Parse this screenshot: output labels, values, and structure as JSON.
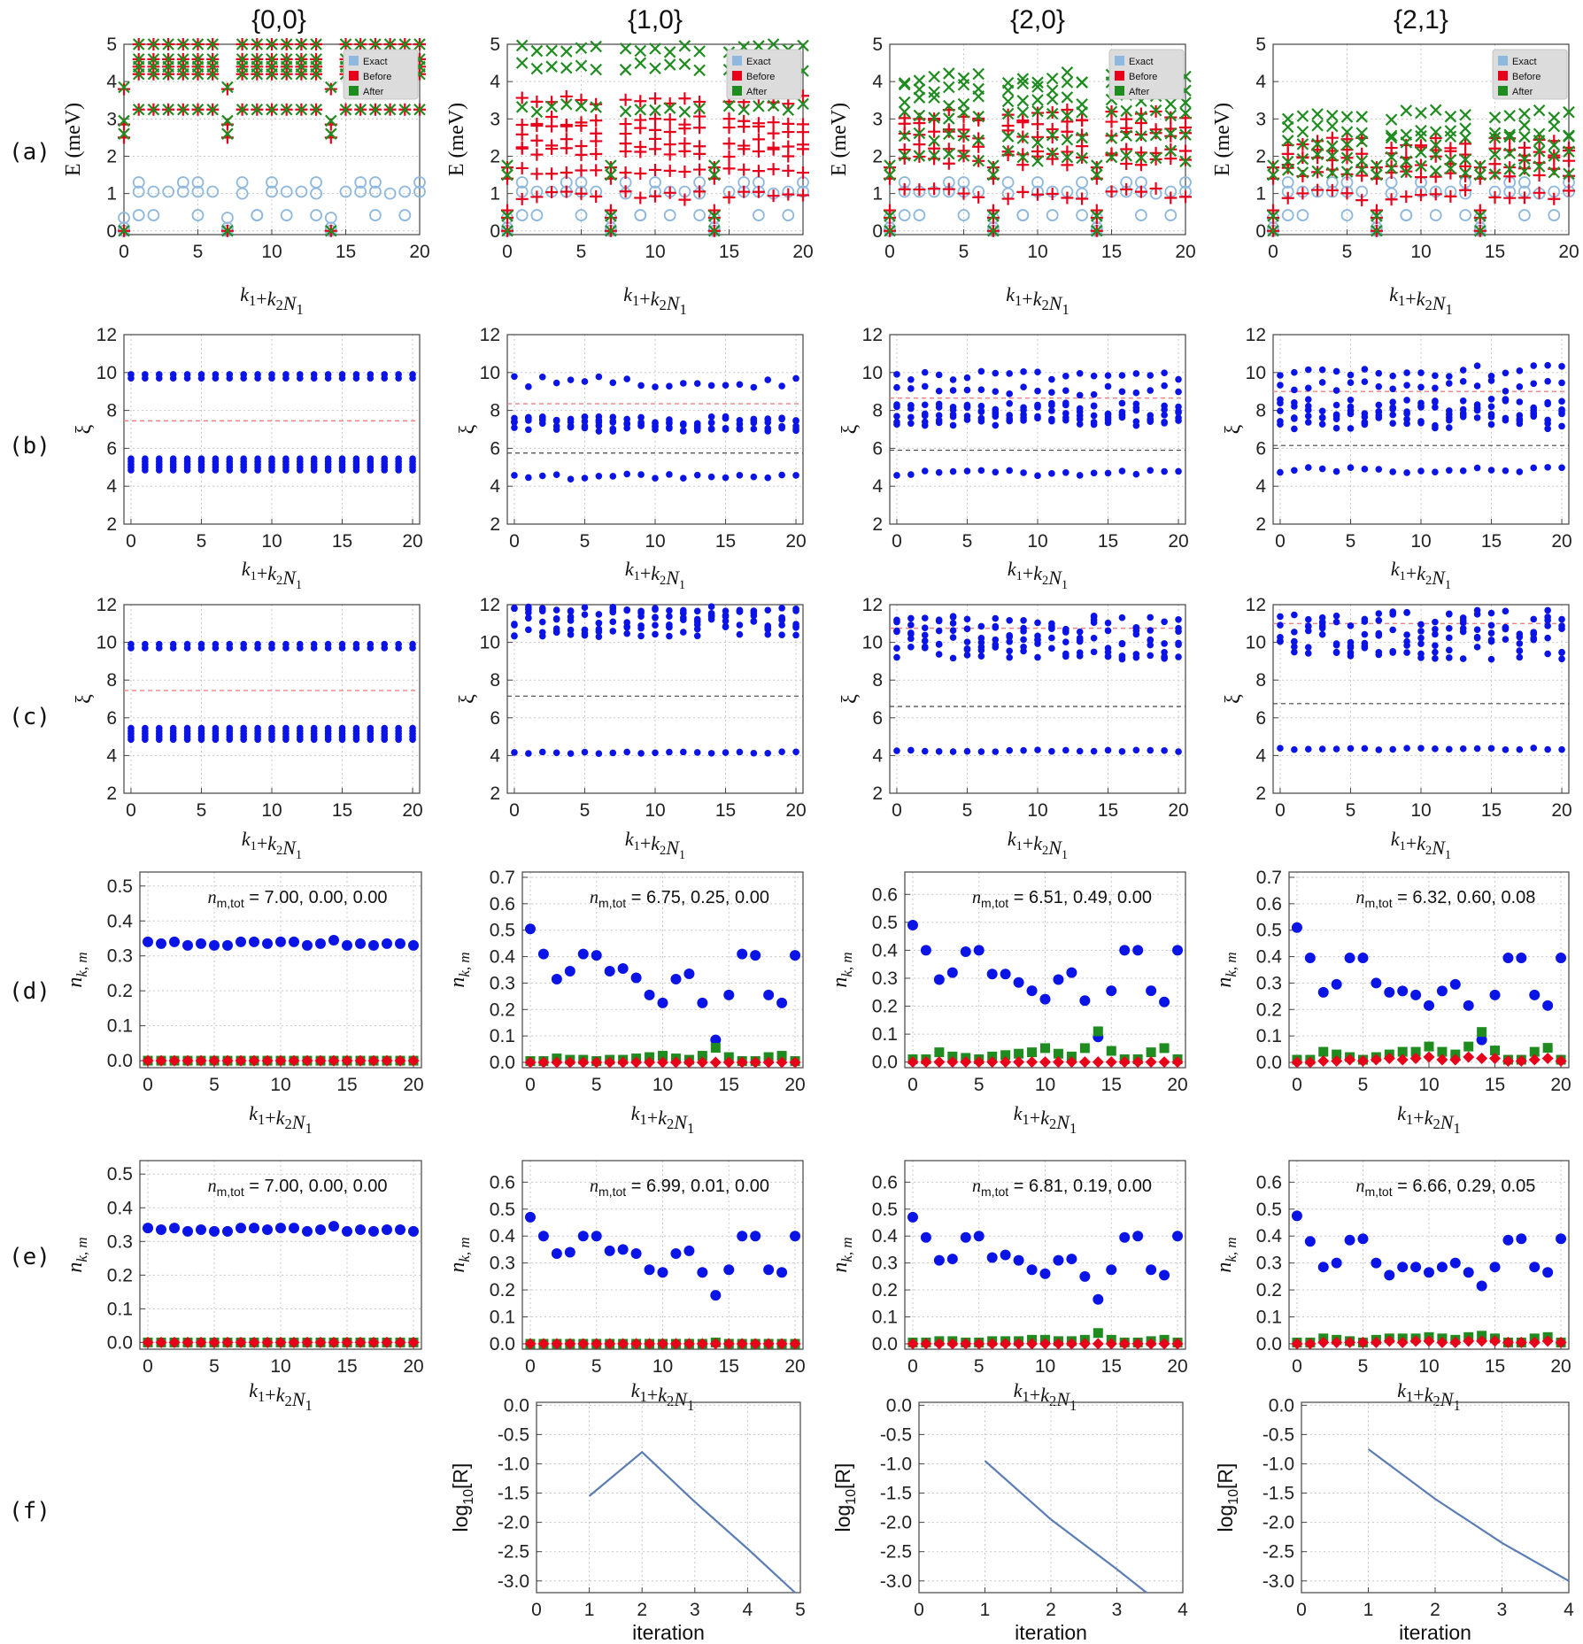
{
  "column_titles": [
    "{0,0}",
    "{1,0}",
    "{2,0}",
    "{2,1}"
  ],
  "row_labels": [
    "(a)",
    "(b)",
    "(c)",
    "(d)",
    "(e)",
    "(f)"
  ],
  "colors": {
    "exact": "#8fb8de",
    "before": "#e8001a",
    "after": "#1e8c1e",
    "xi": "#0a14e6",
    "nk_1": "#0a14e6",
    "nk_2": "#1e8c1e",
    "nk_3": "#e8001a",
    "line": "#5b7db5",
    "thr_red": "#f08080",
    "thr_gray": "#444444"
  },
  "chart_data": [
    {
      "type": "scatter",
      "row": "a",
      "title": "{0,0}",
      "xlabel": "k1+k2N1",
      "ylabel": "E (meV)",
      "xlim": [
        0,
        20
      ],
      "ylim": [
        0,
        5
      ],
      "xticks": [
        "0",
        "5",
        "10",
        "15",
        "20"
      ],
      "yticks": [
        "0",
        "1",
        "2",
        "3",
        "4",
        "5"
      ],
      "legend": [
        "Exact",
        "Before",
        "After"
      ],
      "legend_position": "top-right",
      "exact": [
        [
          0,
          0,
          0.35,
          0.35,
          0.35,
          0
        ],
        [
          1.05,
          1.3,
          0.42,
          1.05,
          1.3,
          1.05
        ],
        [
          1.05,
          0.42,
          1.05,
          1.3,
          0.42,
          1.05
        ]
      ],
      "before": [
        [
          0,
          2.5,
          2.9,
          3.25,
          3.8
        ],
        [
          3.25,
          4.3,
          4.5,
          4.6,
          5.0
        ],
        [
          4.0,
          3.25,
          2.6,
          2.8,
          4.0
        ]
      ],
      "after": [
        [
          0,
          2.6,
          3.0,
          3.25,
          3.85
        ],
        [
          3.25,
          4.3,
          4.5,
          4.6,
          5.0
        ],
        [
          4.0,
          3.25,
          2.5,
          2.8,
          4.0
        ]
      ]
    },
    {
      "type": "scatter",
      "row": "a",
      "title": "{1,0}",
      "xlabel": "k1+k2N1",
      "ylabel": "E (meV)",
      "xlim": [
        0,
        20
      ],
      "ylim": [
        0,
        5
      ],
      "xticks": [
        "0",
        "5",
        "10",
        "15",
        "20"
      ],
      "yticks": [
        "0",
        "1",
        "2",
        "3",
        "4",
        "5"
      ],
      "legend": [
        "Exact",
        "Before",
        "After"
      ],
      "legend_position": "top-right"
    },
    {
      "type": "scatter",
      "row": "a",
      "title": "{2,0}",
      "xlabel": "k1+k2N1",
      "ylabel": "E (meV)",
      "xlim": [
        0,
        20
      ],
      "ylim": [
        0,
        5
      ],
      "xticks": [
        "0",
        "5",
        "10",
        "15",
        "20"
      ],
      "yticks": [
        "0",
        "1",
        "2",
        "3",
        "4",
        "5"
      ],
      "legend": [
        "Exact",
        "Before",
        "After"
      ],
      "legend_position": "top-right"
    },
    {
      "type": "scatter",
      "row": "a",
      "title": "{2,1}",
      "xlabel": "k1+k2N1",
      "ylabel": "E (meV)",
      "xlim": [
        0,
        20
      ],
      "ylim": [
        0,
        5
      ],
      "xticks": [
        "0",
        "5",
        "10",
        "15",
        "20"
      ],
      "yticks": [
        "0",
        "1",
        "2",
        "3",
        "4",
        "5"
      ],
      "legend": [
        "Exact",
        "Before",
        "After"
      ],
      "legend_position": "top-right"
    },
    {
      "type": "scatter",
      "row": "b",
      "xlabel": "k1+k2N1",
      "ylabel": "ξ",
      "xlim": [
        0,
        20
      ],
      "ylim": [
        2,
        12
      ],
      "thresholds": {
        "red": 7.45
      }
    },
    {
      "type": "scatter",
      "row": "b",
      "xlabel": "k1+k2N1",
      "ylabel": "ξ",
      "xlim": [
        0,
        20
      ],
      "ylim": [
        2,
        12
      ],
      "thresholds": {
        "red": 8.35,
        "gray": 5.75
      }
    },
    {
      "type": "scatter",
      "row": "b",
      "xlabel": "k1+k2N1",
      "ylabel": "ξ",
      "xlim": [
        0,
        20
      ],
      "ylim": [
        2,
        12
      ],
      "thresholds": {
        "red": 8.65,
        "gray": 5.9
      }
    },
    {
      "type": "scatter",
      "row": "b",
      "xlabel": "k1+k2N1",
      "ylabel": "ξ",
      "xlim": [
        0,
        20
      ],
      "ylim": [
        2,
        12
      ],
      "thresholds": {
        "red": 9.0,
        "gray": 6.15
      }
    },
    {
      "type": "scatter",
      "row": "c",
      "xlabel": "k1+k2N1",
      "ylabel": "ξ",
      "xlim": [
        0,
        20
      ],
      "ylim": [
        2,
        12
      ],
      "thresholds": {
        "red": 7.45
      }
    },
    {
      "type": "scatter",
      "row": "c",
      "xlabel": "k1+k2N1",
      "ylabel": "ξ",
      "xlim": [
        0,
        20
      ],
      "ylim": [
        2,
        12
      ],
      "thresholds": {
        "gray": 7.15
      }
    },
    {
      "type": "scatter",
      "row": "c",
      "xlabel": "k1+k2N1",
      "ylabel": "ξ",
      "xlim": [
        0,
        20
      ],
      "ylim": [
        2,
        12
      ],
      "thresholds": {
        "red": 10.75,
        "gray": 6.6
      }
    },
    {
      "type": "scatter",
      "row": "c",
      "xlabel": "k1+k2N1",
      "ylabel": "ξ",
      "xlim": [
        0,
        20
      ],
      "ylim": [
        2,
        12
      ],
      "thresholds": {
        "red": 11.0,
        "gray": 6.75
      }
    },
    {
      "type": "scatter",
      "row": "d",
      "xlabel": "k1+k2N1",
      "ylabel": "nk,m",
      "xlim": [
        0,
        20
      ],
      "ylim": [
        0,
        0.5
      ],
      "annotation": "nm,tot = 7.00, 0.00,  0.00",
      "m1": [
        0.34,
        0.335,
        0.34,
        0.33,
        0.335,
        0.33,
        0.33,
        0.34,
        0.34,
        0.335,
        0.34,
        0.34,
        0.33,
        0.335,
        0.345,
        0.33,
        0.335,
        0.33,
        0.335,
        0.335,
        0.33
      ],
      "m2": [
        0,
        0,
        0,
        0,
        0,
        0,
        0,
        0,
        0,
        0,
        0,
        0,
        0,
        0,
        0,
        0,
        0,
        0,
        0,
        0,
        0
      ],
      "m3": [
        0,
        0,
        0,
        0,
        0,
        0,
        0,
        0,
        0,
        0,
        0,
        0,
        0,
        0,
        0,
        0,
        0,
        0,
        0,
        0,
        0
      ]
    },
    {
      "type": "scatter",
      "row": "d",
      "xlabel": "k1+k2N1",
      "ylabel": "nk,m",
      "xlim": [
        0,
        20
      ],
      "ylim": [
        0,
        0.7
      ],
      "annotation": "nm,tot = 6.75, 0.25,  0.00",
      "m1": [
        0.505,
        0.41,
        0.315,
        0.345,
        0.41,
        0.405,
        0.345,
        0.355,
        0.32,
        0.255,
        0.225,
        0.315,
        0.335,
        0.225,
        0.085,
        0.255,
        0.41,
        0.405,
        0.255,
        0.225,
        0.405
      ],
      "m2": [
        0.005,
        0.005,
        0.015,
        0.01,
        0.01,
        0.005,
        0.01,
        0.01,
        0.015,
        0.02,
        0.025,
        0.015,
        0.01,
        0.025,
        0.055,
        0.02,
        0.005,
        0.005,
        0.02,
        0.025,
        0.005
      ],
      "m3": [
        0,
        0,
        0,
        0,
        0,
        0,
        0,
        0,
        0,
        0,
        0,
        0,
        0,
        0,
        0,
        0,
        0,
        0,
        0,
        0,
        0
      ]
    },
    {
      "type": "scatter",
      "row": "d",
      "xlabel": "k1+k2N1",
      "ylabel": "nk,m",
      "xlim": [
        0,
        20
      ],
      "ylim": [
        0,
        0.65
      ],
      "annotation": "nm,tot = 6.51, 0.49,  0.00",
      "m1": [
        0.49,
        0.4,
        0.295,
        0.32,
        0.395,
        0.4,
        0.315,
        0.315,
        0.285,
        0.255,
        0.225,
        0.295,
        0.32,
        0.22,
        0.09,
        0.255,
        0.4,
        0.4,
        0.255,
        0.215,
        0.4
      ],
      "m2": [
        0.01,
        0.01,
        0.035,
        0.02,
        0.015,
        0.01,
        0.02,
        0.025,
        0.03,
        0.035,
        0.05,
        0.03,
        0.02,
        0.05,
        0.11,
        0.04,
        0.01,
        0.01,
        0.035,
        0.05,
        0.01
      ],
      "m3": [
        0,
        0,
        0,
        0,
        0,
        0,
        0,
        0,
        0,
        0,
        0,
        0,
        0,
        0,
        0,
        0,
        0,
        0,
        0,
        0,
        0
      ]
    },
    {
      "type": "scatter",
      "row": "d",
      "xlabel": "k1+k2N1",
      "ylabel": "nk,m",
      "xlim": [
        0,
        20
      ],
      "ylim": [
        0,
        0.7
      ],
      "annotation": "nm,tot = 6.32, 0.60,  0.08",
      "m1": [
        0.51,
        0.395,
        0.265,
        0.295,
        0.395,
        0.395,
        0.3,
        0.265,
        0.27,
        0.255,
        0.215,
        0.27,
        0.295,
        0.215,
        0.085,
        0.255,
        0.395,
        0.395,
        0.255,
        0.215,
        0.395
      ],
      "m2": [
        0.01,
        0.01,
        0.04,
        0.03,
        0.02,
        0.01,
        0.02,
        0.03,
        0.04,
        0.04,
        0.06,
        0.04,
        0.03,
        0.06,
        0.115,
        0.045,
        0.01,
        0.01,
        0.04,
        0.055,
        0.01
      ],
      "m3": [
        0,
        0,
        0.005,
        0.005,
        0.01,
        0.005,
        0.01,
        0.015,
        0.01,
        0.015,
        0.02,
        0.01,
        0.01,
        0.02,
        0.015,
        0.015,
        0.005,
        0.005,
        0.01,
        0.015,
        0.005
      ]
    },
    {
      "type": "scatter",
      "row": "e",
      "xlabel": "k1+k2N1",
      "ylabel": "nk,m",
      "xlim": [
        0,
        20
      ],
      "ylim": [
        0,
        0.5
      ],
      "annotation": "nm,tot = 7.00, 0.00,  0.00",
      "m1": [
        0.34,
        0.335,
        0.34,
        0.33,
        0.335,
        0.33,
        0.33,
        0.34,
        0.34,
        0.335,
        0.34,
        0.34,
        0.33,
        0.335,
        0.345,
        0.33,
        0.335,
        0.33,
        0.335,
        0.335,
        0.33
      ],
      "m2": [
        0,
        0,
        0,
        0,
        0,
        0,
        0,
        0,
        0,
        0,
        0,
        0,
        0,
        0,
        0,
        0,
        0,
        0,
        0,
        0,
        0
      ],
      "m3": [
        0,
        0,
        0,
        0,
        0,
        0,
        0,
        0,
        0,
        0,
        0,
        0,
        0,
        0,
        0,
        0,
        0,
        0,
        0,
        0,
        0
      ]
    },
    {
      "type": "scatter",
      "row": "e",
      "xlabel": "k1+k2N1",
      "ylabel": "nk,m",
      "xlim": [
        0,
        20
      ],
      "ylim": [
        0,
        0.65
      ],
      "annotation": "nm,tot = 6.99, 0.01,  0.00",
      "m1": [
        0.47,
        0.4,
        0.335,
        0.34,
        0.4,
        0.4,
        0.345,
        0.35,
        0.335,
        0.275,
        0.265,
        0.335,
        0.345,
        0.265,
        0.18,
        0.275,
        0.4,
        0.4,
        0.275,
        0.265,
        0.4
      ],
      "m2": [
        0,
        0,
        0,
        0,
        0,
        0,
        0,
        0,
        0,
        0,
        0,
        0,
        0,
        0,
        0.005,
        0,
        0,
        0,
        0,
        0,
        0
      ],
      "m3": [
        0,
        0,
        0,
        0,
        0,
        0,
        0,
        0,
        0,
        0,
        0,
        0,
        0,
        0,
        0,
        0,
        0,
        0,
        0,
        0,
        0
      ]
    },
    {
      "type": "scatter",
      "row": "e",
      "xlabel": "k1+k2N1",
      "ylabel": "nk,m",
      "xlim": [
        0,
        20
      ],
      "ylim": [
        0,
        0.65
      ],
      "annotation": "nm,tot = 6.81, 0.19,  0.00",
      "m1": [
        0.47,
        0.395,
        0.31,
        0.315,
        0.395,
        0.4,
        0.32,
        0.33,
        0.31,
        0.275,
        0.26,
        0.31,
        0.315,
        0.25,
        0.165,
        0.275,
        0.395,
        0.4,
        0.275,
        0.255,
        0.4
      ],
      "m2": [
        0.005,
        0.005,
        0.01,
        0.01,
        0.005,
        0.005,
        0.01,
        0.01,
        0.01,
        0.015,
        0.015,
        0.01,
        0.01,
        0.015,
        0.04,
        0.015,
        0.005,
        0.005,
        0.01,
        0.015,
        0.005
      ],
      "m3": [
        0,
        0,
        0,
        0,
        0,
        0,
        0,
        0,
        0,
        0,
        0,
        0,
        0,
        0,
        0,
        0,
        0,
        0,
        0,
        0,
        0
      ]
    },
    {
      "type": "scatter",
      "row": "e",
      "xlabel": "k1+k2N1",
      "ylabel": "nk,m",
      "xlim": [
        0,
        20
      ],
      "ylim": [
        0,
        0.65
      ],
      "annotation": "nm,tot = 6.66, 0.29,  0.05",
      "m1": [
        0.475,
        0.38,
        0.285,
        0.3,
        0.385,
        0.39,
        0.3,
        0.255,
        0.285,
        0.285,
        0.265,
        0.285,
        0.3,
        0.265,
        0.215,
        0.285,
        0.385,
        0.39,
        0.285,
        0.265,
        0.39
      ],
      "m2": [
        0.005,
        0.005,
        0.02,
        0.015,
        0.01,
        0.005,
        0.015,
        0.02,
        0.02,
        0.02,
        0.025,
        0.02,
        0.015,
        0.025,
        0.03,
        0.02,
        0.005,
        0.005,
        0.02,
        0.025,
        0.005
      ],
      "m3": [
        0,
        0,
        0.005,
        0.005,
        0.005,
        0.005,
        0.005,
        0.01,
        0.005,
        0.01,
        0.01,
        0.005,
        0.005,
        0.01,
        0.01,
        0.01,
        0.005,
        0.005,
        0.005,
        0.01,
        0.005
      ]
    },
    {
      "type": "line",
      "row": "f",
      "xlabel": "iteration",
      "ylabel": "log10[R]",
      "xlim": [
        0,
        5
      ],
      "ylim": [
        -3.2,
        0
      ],
      "xticks": [
        "0",
        "1",
        "2",
        "3",
        "4",
        "5"
      ],
      "x": [
        1,
        2,
        3,
        4,
        4.9
      ],
      "y": [
        -1.55,
        -0.8,
        -1.65,
        -2.45,
        -3.2
      ]
    },
    {
      "type": "line",
      "row": "f",
      "xlabel": "iteration",
      "ylabel": "log10[R]",
      "xlim": [
        0,
        4
      ],
      "ylim": [
        -3.2,
        0
      ],
      "xticks": [
        "0",
        "1",
        "2",
        "3",
        "4"
      ],
      "x": [
        1,
        2,
        3,
        3.45
      ],
      "y": [
        -0.95,
        -1.95,
        -2.8,
        -3.2
      ]
    },
    {
      "type": "line",
      "row": "f",
      "xlabel": "iteration",
      "ylabel": "log10[R]",
      "xlim": [
        0,
        4
      ],
      "ylim": [
        -3.2,
        0
      ],
      "xticks": [
        "0",
        "1",
        "2",
        "3",
        "4"
      ],
      "x": [
        1,
        2,
        3,
        4
      ],
      "y": [
        -0.75,
        -1.6,
        -2.35,
        -3.0
      ]
    }
  ],
  "f_yticks": [
    "0.0",
    "-0.5",
    "-1.0",
    "-1.5",
    "-2.0",
    "-2.5",
    "-3.0"
  ]
}
